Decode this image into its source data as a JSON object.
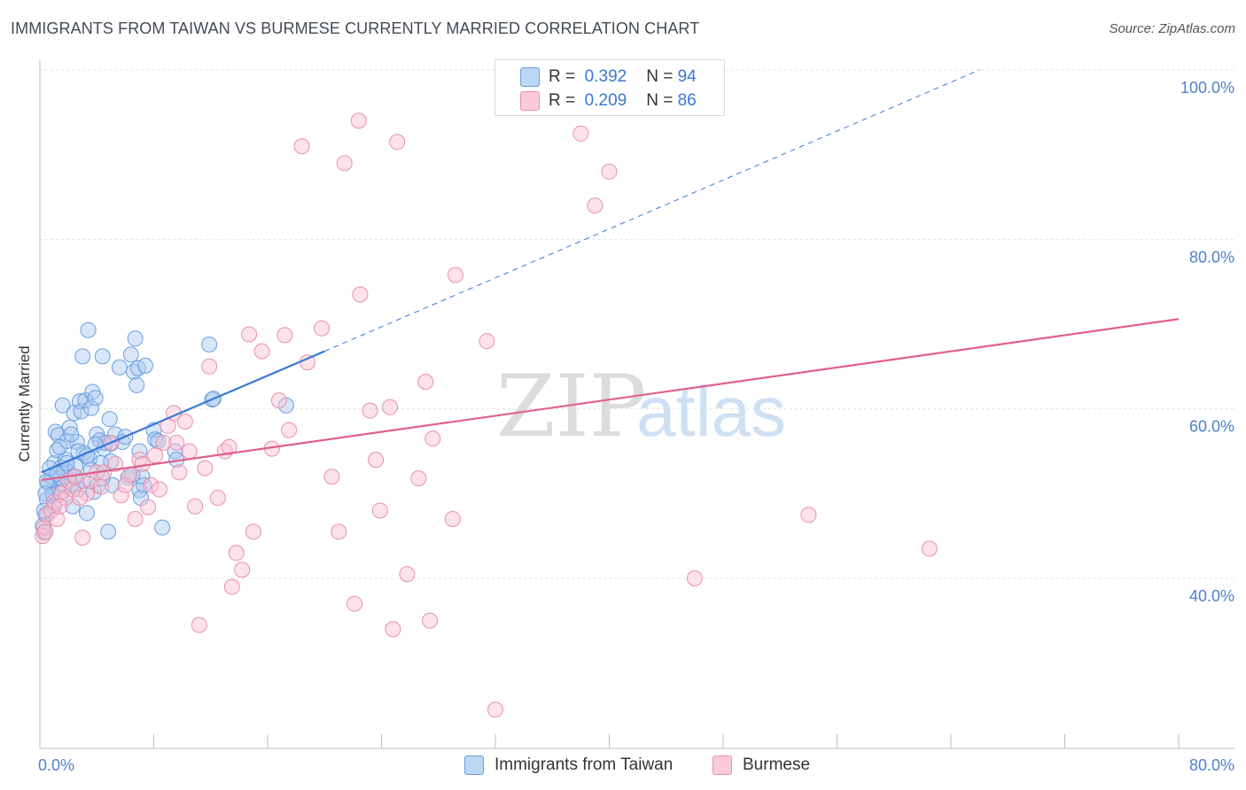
{
  "title": "IMMIGRANTS FROM TAIWAN VS BURMESE CURRENTLY MARRIED CORRELATION CHART",
  "source": "Source: ZipAtlas.com",
  "watermark": {
    "zip": "ZIP",
    "atlas": "atlas"
  },
  "legend": {
    "r_label": "R =",
    "n_label": "N =",
    "series1": {
      "r": "0.392",
      "n": "94",
      "fill": "#a8c8f0",
      "stroke": "#6a9fe0"
    },
    "series2": {
      "r": "0.209",
      "n": "86",
      "fill": "#f8c0d2",
      "stroke": "#e890ac"
    }
  },
  "bottom_legend": {
    "s1": "Immigrants from Taiwan",
    "s2": "Burmese"
  },
  "chart_data": {
    "type": "scatter",
    "title": "IMMIGRANTS FROM TAIWAN VS BURMESE CURRENTLY MARRIED CORRELATION CHART",
    "xlabel": "",
    "ylabel": "Currently Married",
    "xlim": [
      0,
      80
    ],
    "ylim": [
      22,
      102
    ],
    "x_ticks": [
      "0.0%",
      "80.0%"
    ],
    "y_ticks": [
      {
        "value": 100,
        "label": "100.0%"
      },
      {
        "value": 80,
        "label": "80.0%"
      },
      {
        "value": 60,
        "label": "60.0%"
      },
      {
        "value": 40,
        "label": "40.0%"
      }
    ],
    "colors": {
      "taiwan": "#3a78d4",
      "burmese": "#e0608c"
    },
    "trendlines": [
      {
        "series": "Immigrants from Taiwan",
        "solid": [
          [
            0.1,
            52.5
          ],
          [
            20,
            66.8
          ]
        ],
        "dashed": [
          [
            20,
            66.8
          ],
          [
            66,
            100
          ]
        ]
      },
      {
        "series": "Burmese",
        "solid": [
          [
            0.1,
            51.6
          ],
          [
            80,
            70.6
          ]
        ]
      }
    ],
    "series": [
      {
        "name": "Immigrants from Taiwan",
        "points": [
          [
            0.3,
            45.4
          ],
          [
            0.4,
            47.5
          ],
          [
            0.5,
            49.3
          ],
          [
            0.6,
            51.2
          ],
          [
            0.8,
            52.0
          ],
          [
            0.9,
            50.0
          ],
          [
            1.0,
            53.6
          ],
          [
            1.1,
            57.3
          ],
          [
            1.2,
            55.1
          ],
          [
            1.3,
            56.9
          ],
          [
            1.4,
            51.8
          ],
          [
            1.5,
            53.1
          ],
          [
            1.6,
            60.4
          ],
          [
            1.7,
            50.9
          ],
          [
            1.8,
            54.0
          ],
          [
            1.9,
            56.2
          ],
          [
            2.0,
            52.6
          ],
          [
            2.1,
            57.8
          ],
          [
            2.2,
            51.1
          ],
          [
            2.3,
            48.5
          ],
          [
            2.4,
            59.5
          ],
          [
            2.5,
            53.2
          ],
          [
            2.6,
            56.1
          ],
          [
            2.7,
            50.5
          ],
          [
            2.8,
            60.9
          ],
          [
            2.9,
            59.7
          ],
          [
            3.0,
            66.2
          ],
          [
            3.1,
            54.8
          ],
          [
            3.2,
            61.0
          ],
          [
            3.3,
            47.7
          ],
          [
            3.4,
            69.3
          ],
          [
            3.5,
            54.1
          ],
          [
            3.6,
            60.1
          ],
          [
            3.7,
            62.0
          ],
          [
            3.8,
            50.2
          ],
          [
            3.9,
            61.3
          ],
          [
            4.0,
            57.0
          ],
          [
            4.1,
            51.0
          ],
          [
            4.2,
            56.3
          ],
          [
            4.3,
            53.6
          ],
          [
            4.4,
            66.2
          ],
          [
            4.5,
            55.3
          ],
          [
            4.6,
            56.0
          ],
          [
            4.8,
            45.5
          ],
          [
            4.9,
            58.8
          ],
          [
            5.0,
            55.9
          ],
          [
            5.1,
            51.0
          ],
          [
            5.3,
            57.0
          ],
          [
            5.6,
            64.9
          ],
          [
            5.8,
            56.1
          ],
          [
            6.0,
            56.7
          ],
          [
            6.2,
            51.9
          ],
          [
            6.4,
            66.4
          ],
          [
            6.6,
            64.4
          ],
          [
            6.7,
            68.3
          ],
          [
            6.8,
            62.8
          ],
          [
            6.9,
            64.8
          ],
          [
            7.0,
            50.4
          ],
          [
            7.1,
            49.5
          ],
          [
            7.2,
            52.0
          ],
          [
            7.3,
            51.0
          ],
          [
            7.4,
            65.1
          ],
          [
            8.0,
            57.5
          ],
          [
            8.1,
            56.4
          ],
          [
            8.3,
            56.2
          ],
          [
            8.6,
            46.0
          ],
          [
            9.5,
            55.0
          ],
          [
            9.6,
            54.0
          ],
          [
            11.9,
            67.6
          ],
          [
            12.1,
            61.1
          ],
          [
            12.2,
            61.2
          ],
          [
            17.3,
            60.4
          ],
          [
            0.2,
            46.2
          ],
          [
            0.3,
            48.0
          ],
          [
            0.5,
            51.5
          ],
          [
            0.7,
            53.0
          ],
          [
            0.9,
            49.8
          ],
          [
            1.2,
            52.3
          ],
          [
            1.4,
            55.5
          ],
          [
            1.6,
            50.3
          ],
          [
            1.9,
            53.6
          ],
          [
            2.2,
            57.0
          ],
          [
            2.4,
            52.0
          ],
          [
            2.7,
            55.0
          ],
          [
            3.0,
            51.5
          ],
          [
            3.3,
            54.5
          ],
          [
            3.6,
            52.8
          ],
          [
            3.9,
            55.8
          ],
          [
            4.4,
            51.8
          ],
          [
            5.0,
            53.8
          ],
          [
            6.5,
            52.2
          ],
          [
            7.0,
            55.0
          ],
          [
            0.4,
            50.0
          ],
          [
            1.0,
            48.5
          ]
        ]
      },
      {
        "name": "Burmese",
        "points": [
          [
            0.2,
            45.0
          ],
          [
            0.3,
            46.0
          ],
          [
            0.5,
            47.5
          ],
          [
            0.8,
            48.0
          ],
          [
            1.0,
            49.0
          ],
          [
            1.2,
            47.0
          ],
          [
            1.5,
            50.0
          ],
          [
            1.8,
            49.5
          ],
          [
            2.0,
            51.5
          ],
          [
            2.3,
            50.5
          ],
          [
            2.5,
            52.0
          ],
          [
            3.0,
            44.8
          ],
          [
            3.3,
            50.0
          ],
          [
            3.6,
            51.5
          ],
          [
            4.0,
            52.5
          ],
          [
            4.3,
            50.8
          ],
          [
            4.5,
            52.5
          ],
          [
            5.0,
            56.0
          ],
          [
            5.3,
            53.5
          ],
          [
            5.7,
            49.8
          ],
          [
            6.0,
            51.0
          ],
          [
            6.3,
            52.2
          ],
          [
            6.7,
            47.0
          ],
          [
            7.0,
            54.0
          ],
          [
            7.2,
            53.5
          ],
          [
            7.6,
            48.4
          ],
          [
            7.8,
            51.0
          ],
          [
            8.1,
            54.5
          ],
          [
            8.4,
            50.5
          ],
          [
            8.7,
            56.0
          ],
          [
            9.0,
            58.0
          ],
          [
            9.4,
            59.5
          ],
          [
            9.6,
            56.0
          ],
          [
            9.8,
            52.5
          ],
          [
            10.2,
            58.5
          ],
          [
            10.5,
            55.0
          ],
          [
            10.9,
            48.5
          ],
          [
            11.2,
            34.5
          ],
          [
            11.6,
            53.0
          ],
          [
            11.9,
            65.0
          ],
          [
            12.5,
            49.5
          ],
          [
            13.0,
            55.0
          ],
          [
            13.3,
            55.5
          ],
          [
            13.5,
            39.0
          ],
          [
            13.8,
            43.0
          ],
          [
            14.2,
            41.0
          ],
          [
            14.7,
            68.8
          ],
          [
            15.0,
            45.5
          ],
          [
            15.6,
            66.8
          ],
          [
            16.3,
            55.3
          ],
          [
            16.8,
            61.0
          ],
          [
            17.2,
            68.7
          ],
          [
            17.5,
            57.5
          ],
          [
            18.4,
            91.0
          ],
          [
            18.8,
            65.5
          ],
          [
            19.8,
            69.5
          ],
          [
            20.5,
            52.0
          ],
          [
            21.0,
            45.5
          ],
          [
            21.4,
            89.0
          ],
          [
            22.1,
            37.0
          ],
          [
            22.4,
            94.0
          ],
          [
            22.5,
            73.5
          ],
          [
            23.2,
            59.8
          ],
          [
            23.6,
            54.0
          ],
          [
            23.9,
            48.0
          ],
          [
            24.6,
            60.2
          ],
          [
            24.8,
            34.0
          ],
          [
            25.1,
            91.5
          ],
          [
            25.8,
            40.5
          ],
          [
            26.6,
            51.8
          ],
          [
            27.1,
            63.2
          ],
          [
            27.4,
            35.0
          ],
          [
            27.6,
            56.5
          ],
          [
            29.0,
            47.0
          ],
          [
            29.2,
            75.8
          ],
          [
            31.4,
            68.0
          ],
          [
            32.0,
            24.5
          ],
          [
            38.0,
            92.5
          ],
          [
            39.0,
            84.0
          ],
          [
            40.0,
            88.0
          ],
          [
            46.0,
            40.0
          ],
          [
            54.0,
            47.5
          ],
          [
            62.5,
            43.5
          ],
          [
            0.4,
            45.5
          ],
          [
            1.4,
            48.5
          ],
          [
            2.8,
            49.5
          ]
        ]
      }
    ]
  }
}
